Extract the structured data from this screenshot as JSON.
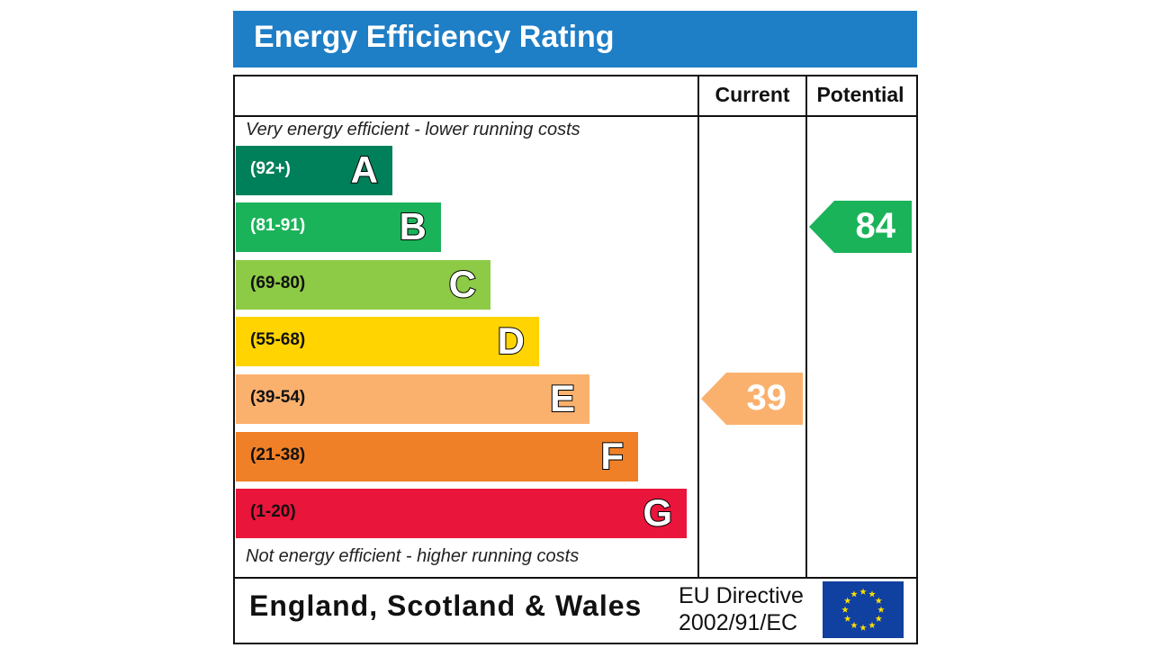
{
  "title": "Energy Efficiency Rating",
  "columns": {
    "current": "Current",
    "potential": "Potential"
  },
  "notes": {
    "top": "Very energy efficient - lower running costs",
    "bottom": "Not energy efficient - higher running costs"
  },
  "footer": {
    "country": "England, Scotland & Wales",
    "directive_line1": "EU Directive",
    "directive_line2": "2002/91/EC",
    "flag": "eu-flag-icon"
  },
  "chart_data": {
    "type": "bar",
    "title": "Energy Efficiency Rating",
    "bands": [
      {
        "letter": "A",
        "range": "(92+)",
        "color": "#00805a",
        "text_color": "#ffffff"
      },
      {
        "letter": "B",
        "range": "(81-91)",
        "color": "#1bb35a",
        "text_color": "#ffffff"
      },
      {
        "letter": "C",
        "range": "(69-80)",
        "color": "#8dcb46",
        "text_color": "#111111"
      },
      {
        "letter": "D",
        "range": "(55-68)",
        "color": "#ffd400",
        "text_color": "#111111"
      },
      {
        "letter": "E",
        "range": "(39-54)",
        "color": "#fbb16e",
        "text_color": "#111111"
      },
      {
        "letter": "F",
        "range": "(21-38)",
        "color": "#ef8027",
        "text_color": "#111111"
      },
      {
        "letter": "G",
        "range": "(1-20)",
        "color": "#e9153b",
        "text_color": "#111111"
      }
    ],
    "current": {
      "value": 39,
      "band": "E",
      "color": "#fbb16e"
    },
    "potential": {
      "value": 84,
      "band": "B",
      "color": "#1bb35a"
    }
  }
}
